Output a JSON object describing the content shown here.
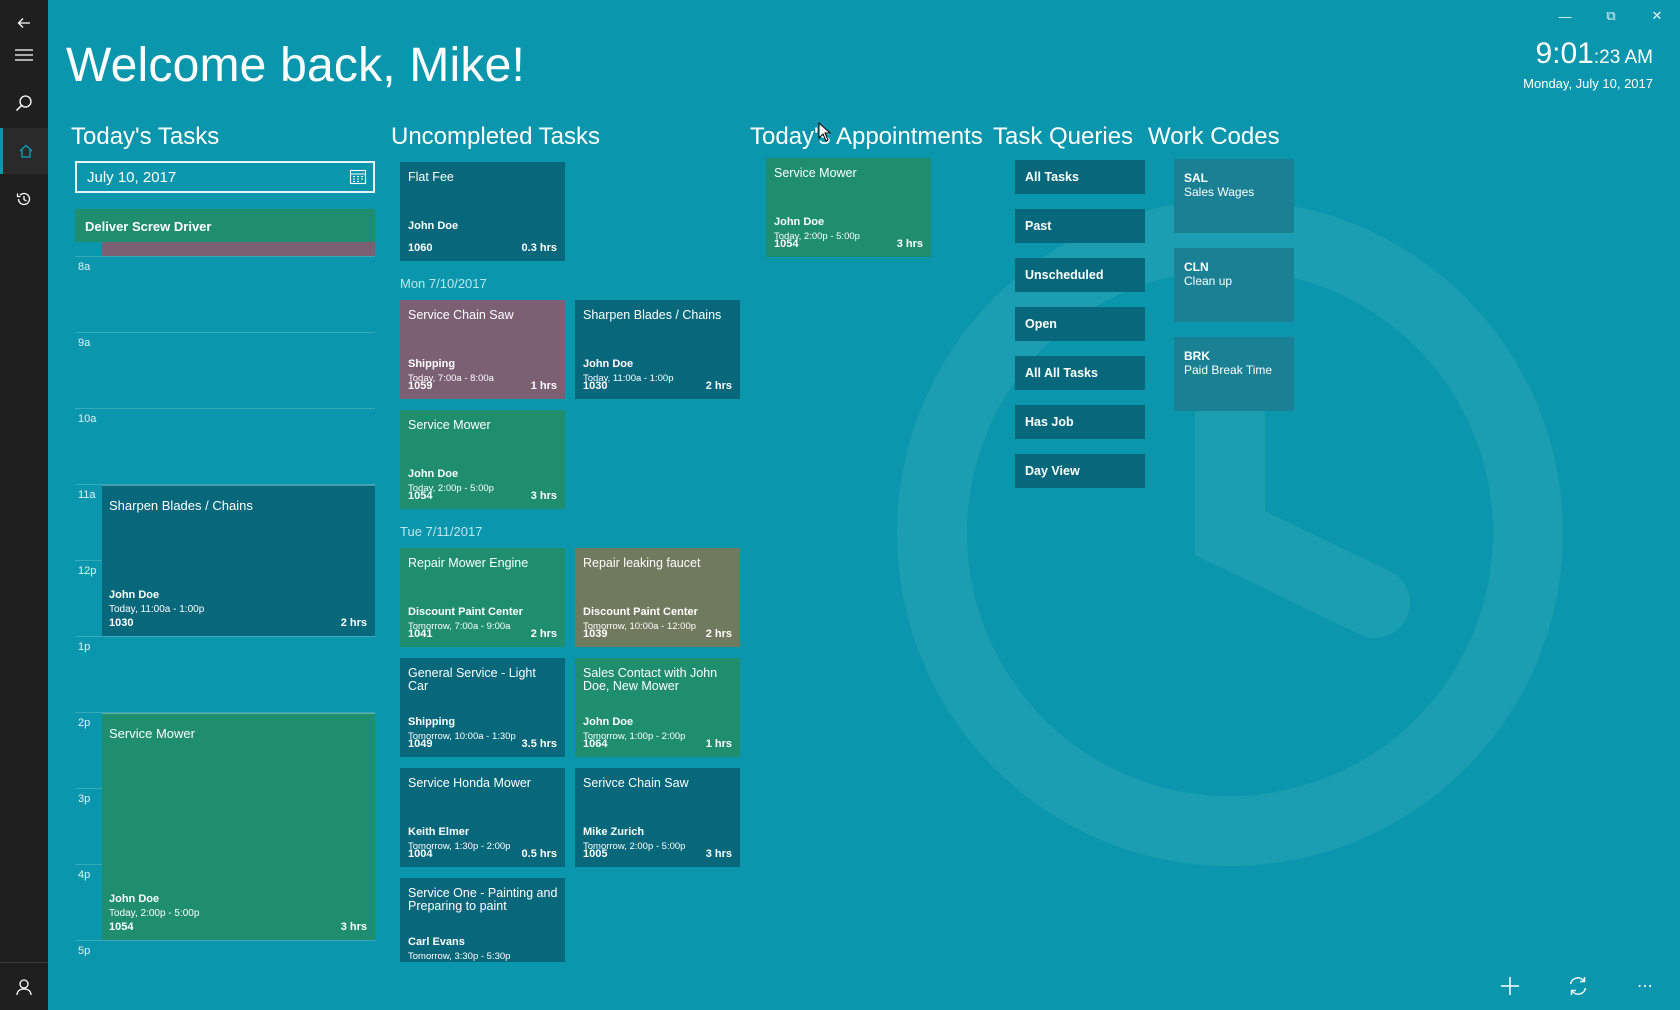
{
  "window": {
    "back_icon": "back-arrow-icon",
    "controls": [
      "minimize",
      "restore",
      "close"
    ]
  },
  "rail": {
    "items": [
      "menu",
      "search",
      "home",
      "history"
    ],
    "active": "home",
    "account_icon": "person-icon"
  },
  "welcome": "Welcome back, Mike!",
  "clock": {
    "time": "9:01",
    "seconds": ":23 AM",
    "date": "Monday, July 10, 2017"
  },
  "todays_tasks": {
    "title": "Today's Tasks",
    "date_value": "July 10, 2017",
    "allday_event": "Deliver Screw Driver",
    "hours": [
      "8a",
      "9a",
      "10a",
      "11a",
      "12p",
      "1p",
      "2p",
      "3p",
      "4p",
      "5p"
    ],
    "events": [
      {
        "title": "Sharpen Blades /  Chains",
        "who": "John Doe",
        "when": "Today, 11:00a - 1:00p",
        "num": "1030",
        "hrs": "2 hrs"
      },
      {
        "title": "Service Mower",
        "who": "John Doe",
        "when": "Today, 2:00p - 5:00p",
        "num": "1054",
        "hrs": "3 hrs"
      }
    ]
  },
  "uncompleted": {
    "title": "Uncompleted Tasks",
    "flat": {
      "title": "Flat Fee",
      "who": "John Doe",
      "when": "",
      "num": "1060",
      "hrs": "0.3 hrs"
    },
    "day1": "Mon 7/10/2017",
    "day2": "Tue 7/11/2017",
    "tiles": [
      {
        "title": "Service Chain Saw",
        "who": "Shipping",
        "when": "Today, 7:00a - 8:00a",
        "num": "1059",
        "hrs": "1 hrs"
      },
      {
        "title": "Sharpen Blades /  Chains",
        "who": "John Doe",
        "when": "Today, 11:00a - 1:00p",
        "num": "1030",
        "hrs": "2 hrs"
      },
      {
        "title": "Service Mower",
        "who": "John Doe",
        "when": "Today, 2:00p - 5:00p",
        "num": "1054",
        "hrs": "3 hrs"
      },
      {
        "title": "Repair Mower Engine",
        "who": "Discount Paint Center",
        "when": "Tomorrow, 7:00a - 9:00a",
        "num": "1041",
        "hrs": "2 hrs"
      },
      {
        "title": "Repair leaking faucet",
        "who": "Discount Paint Center",
        "when": "Tomorrow, 10:00a - 12:00p",
        "num": "1039",
        "hrs": "2 hrs"
      },
      {
        "title": "General Service - Light Car",
        "who": "Shipping",
        "when": "Tomorrow, 10:00a - 1:30p",
        "num": "1049",
        "hrs": "3.5 hrs"
      },
      {
        "title": "Sales Contact with John Doe, New Mower",
        "who": "John Doe",
        "when": "Tomorrow, 1:00p - 2:00p",
        "num": "1064",
        "hrs": "1 hrs"
      },
      {
        "title": "Service Honda Mower",
        "who": "Keith Elmer",
        "when": "Tomorrow, 1:30p - 2:00p",
        "num": "1004",
        "hrs": "0.5 hrs"
      },
      {
        "title": "Serivce Chain Saw",
        "who": "Mike Zurich",
        "when": "Tomorrow, 2:00p - 5:00p",
        "num": "1005",
        "hrs": "3 hrs"
      },
      {
        "title": "Service One - Painting and Preparing to paint",
        "who": "Carl Evans",
        "when": "Tomorrow, 3:30p - 5:30p",
        "num": "",
        "hrs": ""
      }
    ]
  },
  "appointments": {
    "title": "Today's Appointments",
    "tile": {
      "title": "Service Mower",
      "who": "John Doe",
      "when": "Today, 2:00p - 5:00p",
      "num": "1054",
      "hrs": "3 hrs"
    }
  },
  "queries": {
    "title": "Task Queries",
    "items": [
      "All Tasks",
      "Past",
      "Unscheduled",
      "Open",
      "All All Tasks",
      "Has Job",
      "Day View"
    ]
  },
  "work_codes": {
    "title": "Work Codes",
    "items": [
      {
        "code": "SAL",
        "desc": "Sales Wages"
      },
      {
        "code": "CLN",
        "desc": "Clean up"
      },
      {
        "code": "BRK",
        "desc": "Paid Break Time"
      }
    ]
  },
  "colors": {
    "background": "#0a96ad",
    "green": "#1e8e6e",
    "teal": "#07687c",
    "mauve": "#7b5f73",
    "olive": "#6f7a5e",
    "rail": "#1f1f1f"
  },
  "command_bar": [
    "add-icon",
    "refresh-icon",
    "more-icon"
  ]
}
